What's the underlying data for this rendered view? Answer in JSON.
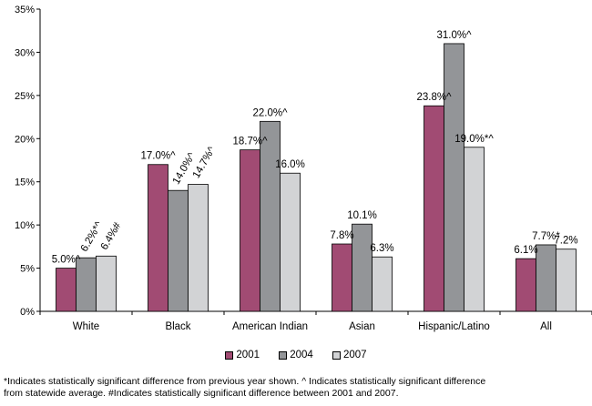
{
  "chart_data": {
    "type": "bar",
    "categories": [
      "White",
      "Black",
      "American Indian",
      "Asian",
      "Hispanic/Latino",
      "All"
    ],
    "series": [
      {
        "name": "2001",
        "color": "#a14b73",
        "values": [
          5.0,
          17.0,
          18.7,
          7.8,
          23.8,
          6.1
        ],
        "labels": [
          "5.0%^",
          "17.0%^",
          "18.7%^",
          "7.8%",
          "23.8%^",
          "6.1%"
        ]
      },
      {
        "name": "2004",
        "color": "#939598",
        "values": [
          6.2,
          14.0,
          22.0,
          10.1,
          31.0,
          7.7
        ],
        "labels": [
          "6.2%*^",
          "14.0%^",
          "22.0%^",
          "10.1%",
          "31.0%^",
          "7.7%*"
        ]
      },
      {
        "name": "2007",
        "color": "#d2d3d5",
        "values": [
          6.4,
          14.7,
          16.0,
          6.3,
          19.0,
          7.2
        ],
        "labels": [
          "6.4%#",
          "14.7%^",
          "16.0%",
          "6.3%",
          "19.0%*^",
          "7.2%"
        ]
      }
    ],
    "rotated_labels": [
      [
        0,
        1
      ],
      [
        0,
        2
      ],
      [
        1,
        1
      ],
      [
        1,
        2
      ]
    ],
    "ylim": [
      0,
      35
    ],
    "yticks": [
      0,
      5,
      10,
      15,
      20,
      25,
      30,
      35
    ],
    "ytick_labels": [
      "0%",
      "5%",
      "10%",
      "15%",
      "20%",
      "25%",
      "30%",
      "35%"
    ],
    "legend_position": "bottom",
    "grid": false
  },
  "footnote": {
    "line1": "*Indicates statistically significant difference from previous year shown. ^ Indicates statistically significant difference",
    "line2": " from statewide average. #Indicates statistically significant difference between 2001 and 2007."
  }
}
